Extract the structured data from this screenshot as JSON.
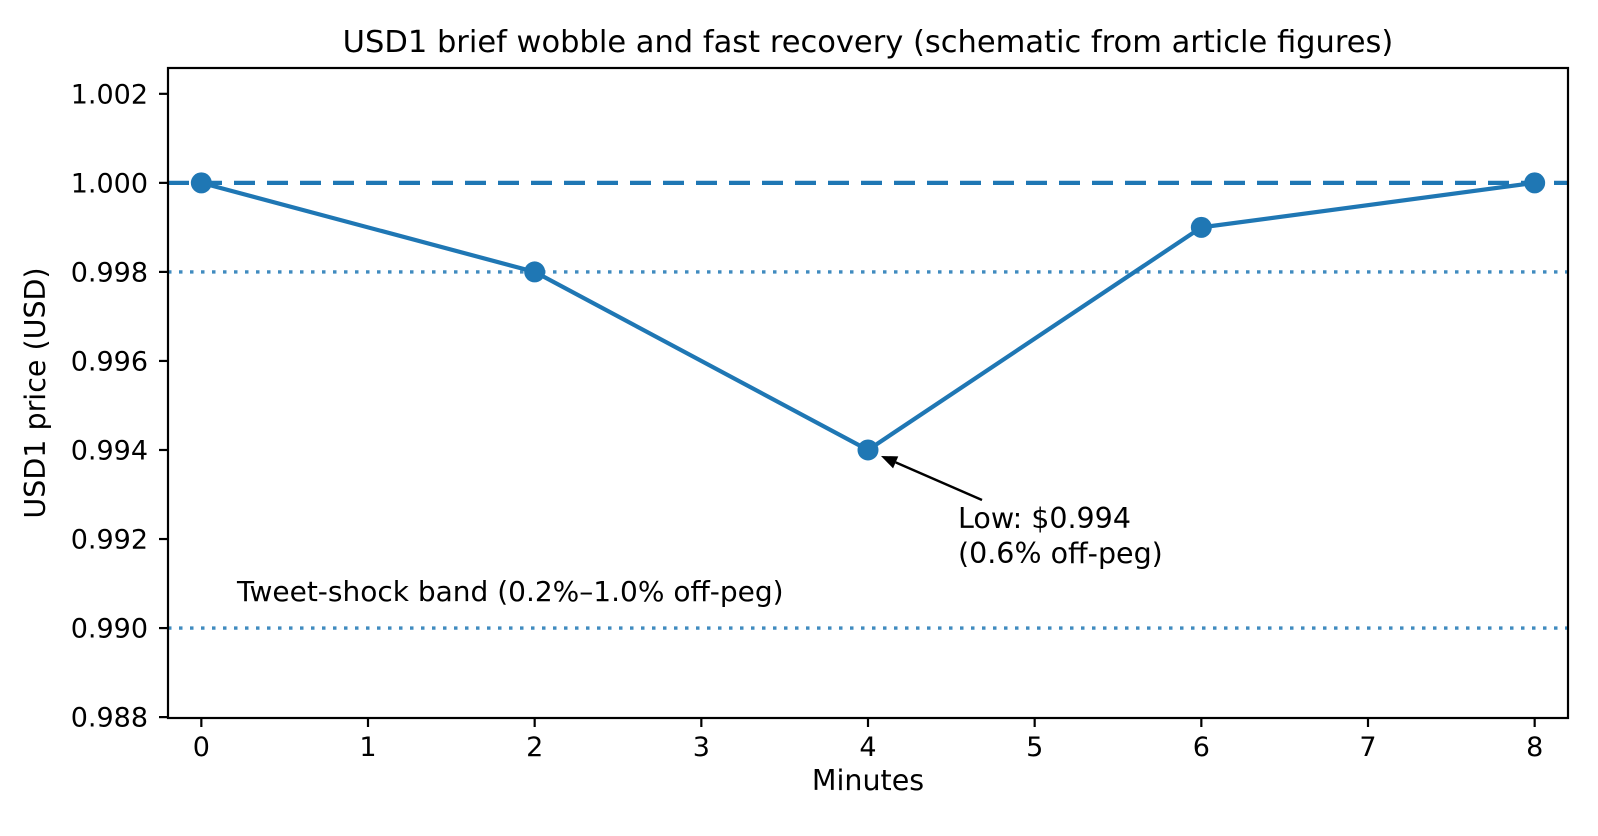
{
  "chart_data": {
    "type": "line",
    "title": "USD1 brief wobble and fast recovery (schematic from article figures)",
    "xlabel": "Minutes",
    "ylabel": "USD1 price (USD)",
    "series": [
      {
        "name": "USD1 price",
        "x": [
          0,
          2,
          4,
          6,
          8
        ],
        "y": [
          1.0,
          0.998,
          0.994,
          0.999,
          1.0
        ],
        "color": "#1f77b4",
        "marker": "circle"
      }
    ],
    "xlim": [
      -0.2,
      8.2
    ],
    "ylim": [
      0.98798,
      1.00258
    ],
    "xticks": {
      "values": [
        0,
        1,
        2,
        3,
        4,
        5,
        6,
        7,
        8
      ],
      "labels": [
        "0",
        "1",
        "2",
        "3",
        "4",
        "5",
        "6",
        "7",
        "8"
      ]
    },
    "yticks": {
      "values": [
        0.988,
        0.99,
        0.992,
        0.994,
        0.996,
        0.998,
        1.0,
        1.002
      ],
      "labels": [
        "0.988",
        "0.990",
        "0.992",
        "0.994",
        "0.996",
        "0.998",
        "1.000",
        "1.002"
      ]
    },
    "reference_lines": [
      {
        "y": 1.0,
        "style": "dashed",
        "name": "peg-line"
      },
      {
        "y": 0.998,
        "style": "dotted",
        "name": "band-upper-line"
      },
      {
        "y": 0.99,
        "style": "dotted",
        "name": "band-lower-line"
      }
    ],
    "annotation": {
      "lines": [
        "Low: $0.994",
        "(0.6% off-peg)"
      ],
      "point": [
        4,
        0.994
      ]
    },
    "band_label": {
      "text": "Tweet-shock band (0.2%–1.0% off-peg)",
      "pos": [
        0.21,
        0.9906
      ]
    },
    "grid": false,
    "legend": null,
    "colors": {
      "line": "#1f77b4",
      "axis": "#000000",
      "annotation_arrow": "#000000"
    }
  }
}
